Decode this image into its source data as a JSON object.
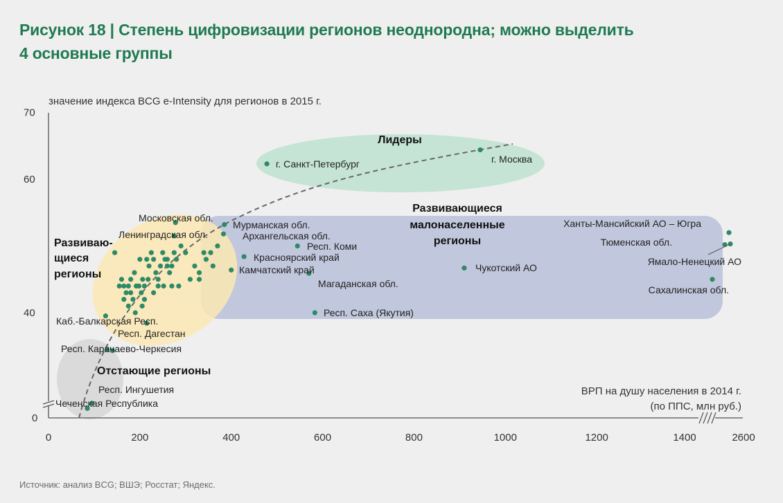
{
  "title": {
    "line1": "Рисунок 18 | Степень цифровизации регионов неоднородна; можно выделить",
    "line2": "4 основные группы"
  },
  "source": "Источник: анализ BCG; ВШЭ; Росстат; Яндекс.",
  "colors": {
    "title": "#1f7a52",
    "point": "#2e8a66",
    "trend": "#666666",
    "leaders": "#bde2d0",
    "developing": "#fbe8b3",
    "lagging": "#d8d8d8",
    "sparse": "#b9bfd9"
  },
  "chart_data": {
    "type": "scatter",
    "ylabel": "значение  индекса  BCG e-Intensity для регионов в 2015 г.",
    "xlabel_line1": "ВРП на душу населения в 2014 г.",
    "xlabel_line2": "(по ППС, млн руб.)",
    "x_ticks": [
      "0",
      "200",
      "400",
      "600",
      "800",
      "1000",
      "1200",
      "1400",
      "2600"
    ],
    "y_ticks": [
      "0",
      "40",
      "60",
      "70"
    ],
    "axis_break": "x between 1400 and 2600; y between 0 and 40",
    "groups": [
      {
        "name": "Лидеры",
        "color": "leaders"
      },
      {
        "name": "Развивающиеся регионы",
        "lines": [
          "Развиваю-",
          "щиеся",
          "регионы"
        ],
        "color": "developing"
      },
      {
        "name": "Отстающие регионы",
        "color": "lagging"
      },
      {
        "name": "Развивающиеся малонаселенные регионы",
        "lines": [
          "Развивающиеся",
          "малонаселенные",
          "регионы"
        ],
        "color": "sparse"
      }
    ],
    "labeled_points": [
      {
        "label": "г. Москва",
        "x": 945,
        "y": 64.4
      },
      {
        "label": "г. Санкт-Петербург",
        "x": 478,
        "y": 62.3
      },
      {
        "label": "Московская обл.",
        "x": 278,
        "y": 53.5
      },
      {
        "label": "Ленинградская обл.",
        "x": 275,
        "y": 51.5
      },
      {
        "label": "Мурманская обл.",
        "x": 385,
        "y": 53.2
      },
      {
        "label": "Архангельская обл.",
        "x": 383,
        "y": 51.8
      },
      {
        "label": "Респ. Коми",
        "x": 545,
        "y": 50.0
      },
      {
        "label": "Красноярский край",
        "x": 428,
        "y": 48.4
      },
      {
        "label": "Камчатский край",
        "x": 400,
        "y": 46.4
      },
      {
        "label": "Магаданская обл.",
        "x": 570,
        "y": 45.9
      },
      {
        "label": "Респ. Саха (Якутия)",
        "x": 583,
        "y": 40.0
      },
      {
        "label": "Чукотский АО",
        "x": 910,
        "y": 46.7
      },
      {
        "label": "Ханты-Мансийский АО – Югра",
        "x": 2540,
        "y": 52.0
      },
      {
        "label": "Тюменская обл.",
        "x": 2480,
        "y": 50.2
      },
      {
        "label": "Ямало-Ненецкий АО",
        "x": 2560,
        "y": 50.3
      },
      {
        "label": "Сахалинская обл.",
        "x": 2300,
        "y": 45.0
      },
      {
        "label": "Каб.-Балкарская Респ.",
        "x": 125,
        "y": 39.7
      },
      {
        "label": "Респ. Дагестан",
        "x": 140,
        "y": 36.4
      },
      {
        "label": "Респ. Карачаево-Черкесия",
        "x": 128,
        "y": 36.5
      },
      {
        "label": "Респ. Ингушетия",
        "x": 95,
        "y": 31.4
      },
      {
        "label": "Чеченская Республика",
        "x": 85,
        "y": 30.9
      }
    ],
    "other_points": [
      [
        145,
        49
      ],
      [
        155,
        44
      ],
      [
        160,
        45
      ],
      [
        165,
        44
      ],
      [
        170,
        43
      ],
      [
        175,
        44
      ],
      [
        180,
        43
      ],
      [
        185,
        42
      ],
      [
        165,
        42
      ],
      [
        175,
        41
      ],
      [
        180,
        45
      ],
      [
        188,
        46
      ],
      [
        192,
        44
      ],
      [
        198,
        44
      ],
      [
        203,
        43
      ],
      [
        206,
        45
      ],
      [
        210,
        44
      ],
      [
        215,
        48
      ],
      [
        220,
        47
      ],
      [
        225,
        49
      ],
      [
        230,
        48
      ],
      [
        235,
        46
      ],
      [
        240,
        44
      ],
      [
        245,
        47
      ],
      [
        250,
        49
      ],
      [
        255,
        48
      ],
      [
        260,
        47
      ],
      [
        265,
        46
      ],
      [
        270,
        47
      ],
      [
        275,
        49
      ],
      [
        280,
        48
      ],
      [
        285,
        44
      ],
      [
        290,
        50
      ],
      [
        300,
        49
      ],
      [
        310,
        45
      ],
      [
        320,
        47
      ],
      [
        330,
        46
      ],
      [
        340,
        49
      ],
      [
        355,
        49
      ],
      [
        360,
        47
      ],
      [
        205,
        41
      ],
      [
        215,
        39
      ],
      [
        210,
        42
      ],
      [
        230,
        43
      ],
      [
        240,
        45
      ],
      [
        252,
        44
      ],
      [
        260,
        48
      ],
      [
        270,
        44
      ],
      [
        330,
        45
      ],
      [
        345,
        48
      ],
      [
        370,
        50
      ],
      [
        190,
        40
      ],
      [
        200,
        48
      ],
      [
        218,
        45
      ]
    ]
  }
}
